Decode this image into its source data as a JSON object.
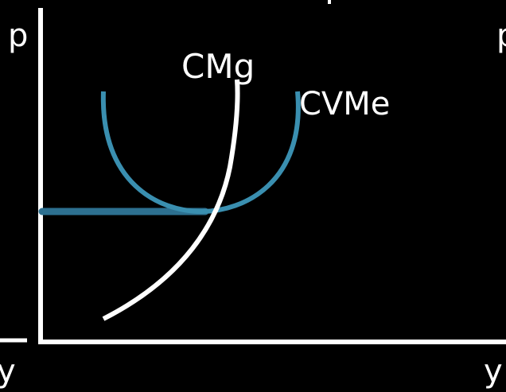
{
  "diagram": {
    "axis_labels": {
      "left_price": "p",
      "right_price": "p",
      "left_quantity": "y",
      "right_quantity": "y"
    },
    "curves": {
      "marginal_cost": {
        "label": "CMg",
        "color": "#ffffff"
      },
      "avg_variable_cost": {
        "label": "CVMe",
        "color": "#3a8fb0"
      }
    },
    "shutdown_price_line": {
      "color": "#2d7090"
    },
    "background_color": "#000000",
    "axis_color": "#ffffff"
  }
}
